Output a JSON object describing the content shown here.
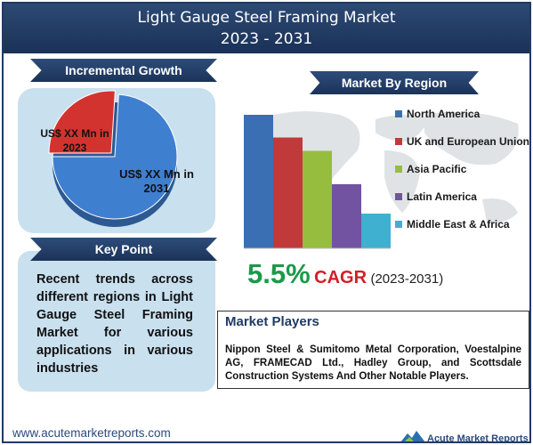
{
  "header": {
    "title_line1": "Light Gauge Steel Framing Market",
    "title_line2": "2023 - 2031"
  },
  "incremental_growth": {
    "heading": "Incremental Growth",
    "label_2023": "US$ XX Mn in 2023",
    "label_2031": "US$ XX Mn in 2031",
    "colors": {
      "2023": "#d3332e",
      "2031": "#3f7fd0"
    }
  },
  "key_point": {
    "heading": "Key Point",
    "text": "Recent trends across different regions in Light Gauge Steel Framing Market for various applications in various industries"
  },
  "market_by_region": {
    "heading": "Market By Region"
  },
  "cagr": {
    "value": "5.5%",
    "label": "CAGR",
    "period": "(2023-2031)"
  },
  "players": {
    "heading": "Market Players",
    "text": "Nippon Steel & Sumitomo Metal Corporation, Voestalpine AG, FRAMECAD Ltd., Hadley Group, and Scottsdale Construction Systems And Other Notable Players."
  },
  "footer": {
    "url": "www.acutemarketreports.com",
    "brand": "Acute Market Reports"
  },
  "chart_data": [
    {
      "type": "pie",
      "slices": [
        {
          "label": "US$ XX Mn in 2023",
          "value": 26,
          "color": "#d3332e"
        },
        {
          "label": "US$ XX Mn in 2031",
          "value": 74,
          "color": "#3f7fd0"
        }
      ]
    },
    {
      "type": "bar",
      "categories": [
        "North America",
        "UK and European Union",
        "Asia Pacific",
        "Latin America",
        "Middle East & Africa"
      ],
      "values": [
        100,
        83,
        73,
        48,
        26
      ],
      "colors": [
        "#3b6fb3",
        "#c0393b",
        "#96bd3e",
        "#7153a2",
        "#3fb0cf"
      ],
      "legend": "right",
      "grid": false
    }
  ]
}
